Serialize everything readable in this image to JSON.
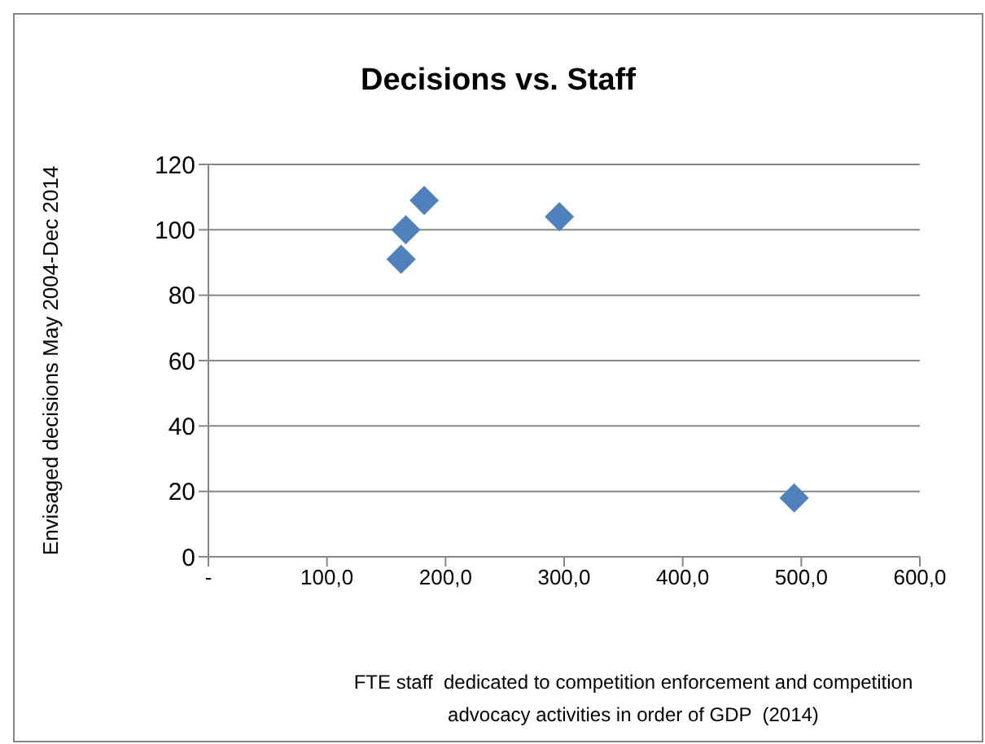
{
  "chart_data": {
    "type": "scatter",
    "title": "Decisions vs. Staff",
    "xlabel": "FTE staff  dedicated to competition enforcement and competition advocacy activities in order of GDP  (2014)",
    "ylabel": "Envisaged decisions May 2004-Dec 2014",
    "series": [
      {
        "color": "#4f81bd",
        "x": [
          182,
          166.5,
          162.5,
          296,
          494
        ],
        "values": [
          109,
          100,
          91,
          104,
          18
        ]
      }
    ],
    "xlim": [
      0,
      600
    ],
    "xticks": [
      {
        "value": 0,
        "label": "-"
      },
      {
        "value": 100,
        "label": "100,0"
      },
      {
        "value": 200,
        "label": "200,0"
      },
      {
        "value": 300,
        "label": "300,0"
      },
      {
        "value": 400,
        "label": "400,0"
      },
      {
        "value": 500,
        "label": "500,0"
      },
      {
        "value": 600,
        "label": "600,0"
      }
    ],
    "ylim": [
      0,
      120
    ],
    "yticks": [
      0,
      20,
      40,
      60,
      80,
      100,
      120
    ],
    "grid": "y",
    "marker": "diamond"
  }
}
